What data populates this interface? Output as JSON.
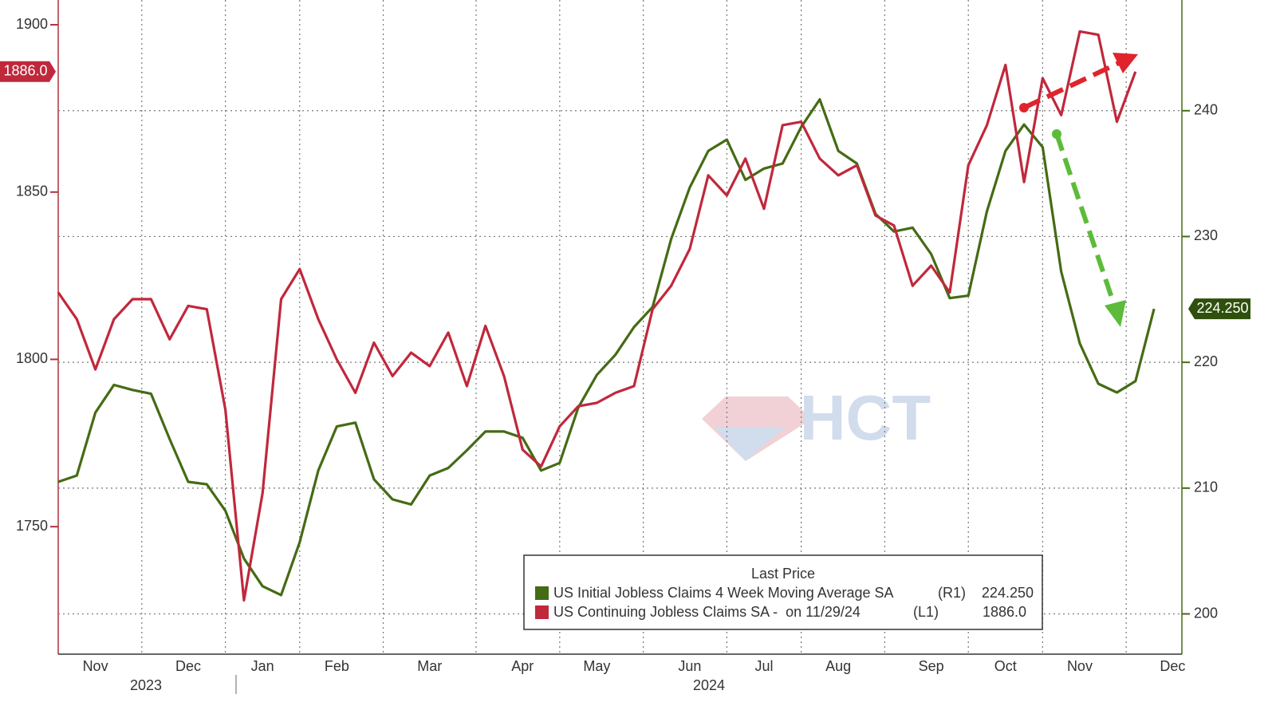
{
  "chart_data": {
    "type": "line",
    "categories": [
      null,
      null,
      "Nov",
      null,
      null,
      null,
      null,
      "Dec",
      null,
      null,
      null,
      "Jan",
      null,
      null,
      null,
      "Feb",
      null,
      null,
      null,
      null,
      "Mar",
      null,
      null,
      null,
      null,
      "Apr",
      null,
      null,
      null,
      "May",
      null,
      null,
      null,
      null,
      "Jun",
      null,
      null,
      null,
      "Jul",
      null,
      null,
      null,
      "Aug",
      null,
      null,
      null,
      null,
      "Sep",
      null,
      null,
      null,
      "Oct",
      null,
      null,
      null,
      "Nov",
      null,
      null,
      null,
      null,
      "Dec"
    ],
    "year_labels": [
      "2023",
      "2024"
    ],
    "series": [
      {
        "name": "US Initial Jobless Claims 4 Week Moving Average SA",
        "legend_axis": "(R1)",
        "last_label": "224.250",
        "axis": "y2",
        "color": "#456b14",
        "values": [
          210.5,
          211.0,
          216.0,
          218.2,
          217.8,
          217.5,
          213.9,
          210.5,
          210.3,
          208.2,
          204.4,
          202.2,
          201.5,
          205.7,
          211.4,
          214.9,
          215.2,
          210.7,
          209.1,
          208.7,
          211.0,
          211.6,
          213.0,
          214.5,
          214.5,
          214.0,
          211.4,
          212.0,
          216.4,
          219.0,
          220.6,
          222.8,
          224.4,
          229.8,
          233.9,
          236.8,
          237.7,
          234.5,
          235.4,
          235.8,
          238.7,
          240.9,
          236.8,
          235.8,
          231.8,
          230.4,
          230.7,
          228.6,
          225.1,
          225.3,
          232.0,
          236.8,
          238.9,
          237.1,
          227.2,
          221.5,
          218.3,
          217.6,
          218.5,
          224.25,
          null
        ]
      },
      {
        "name": "US Continuing Jobless Claims SA -  on 11/29/24",
        "legend_axis": "(L1)",
        "last_label": "1886.0",
        "axis": "y",
        "color": "#c0283c",
        "values": [
          1820,
          1812,
          1797,
          1812,
          1818,
          1818,
          1806,
          1816,
          1815,
          1785,
          1728,
          1760,
          1818,
          1827,
          1812,
          1800,
          1790,
          1805,
          1795,
          1802,
          1798,
          1808,
          1792,
          1810,
          1795,
          1773,
          1768,
          1780,
          1786,
          1787,
          1790,
          1792,
          1815,
          1822,
          1833,
          1855,
          1849,
          1860,
          1845,
          1870,
          1871,
          1860,
          1855,
          1858,
          1843,
          1840,
          1822,
          1828,
          1820,
          1858,
          1870,
          1888,
          1853,
          1884,
          1873,
          1898,
          1897,
          1871,
          1886,
          null,
          null
        ]
      }
    ],
    "legend_title": "Last Price",
    "ylim": [
      1711.9,
      1907.4
    ],
    "yticks": [
      1750,
      1800,
      1850,
      1900
    ],
    "y2lim": [
      196.8,
      248.8
    ],
    "y2ticks": [
      200,
      210,
      220,
      230,
      240
    ],
    "grid": true,
    "watermark": "HCT"
  }
}
